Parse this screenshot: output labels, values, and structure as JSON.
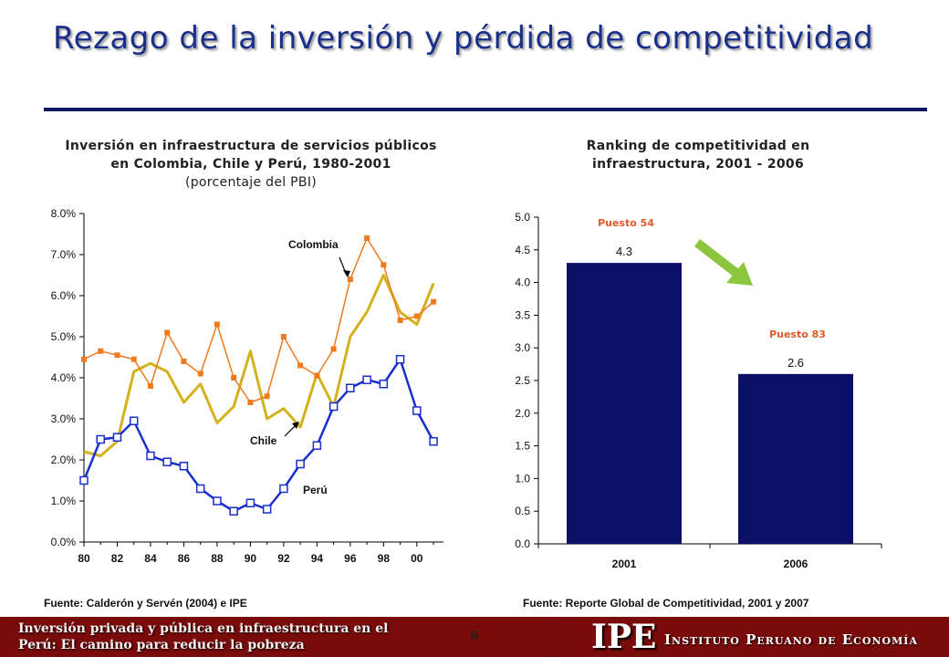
{
  "slide": {
    "title": "Rezago de la inversión y pérdida de competitividad",
    "page_number": "6",
    "footer_text": "Inversión privada y pública en infraestructura en el Perú: El camino para reducir la pobreza",
    "logo_text": "IPE",
    "institute_name": "Instituto Peruano de Economía"
  },
  "left_chart_title": {
    "line1": "Inversión en infraestructura de servicios públicos",
    "line2": "en Colombia, Chile y Perú, 1980-2001",
    "line3": "(porcentaje del PBI)"
  },
  "right_chart_title": {
    "line1": "Ranking de competitividad en",
    "line2": "infraestructura, 2001 - 2006"
  },
  "sources": {
    "left": "Fuente: Calderón y Servén (2004) e IPE",
    "right": "Fuente: Reporte Global de Competitividad, 2001 y 2007"
  },
  "colors": {
    "title": "#1a2f8a",
    "colombia": "#f07a1e",
    "chile": "#d4b21e",
    "peru": "#1a2fcc",
    "bars": "#0b0f66",
    "puesto": "#e05a2a",
    "arrow": "#8cc63f"
  },
  "chart_data": [
    {
      "type": "line",
      "x": [
        1980,
        1981,
        1982,
        1983,
        1984,
        1985,
        1986,
        1987,
        1988,
        1989,
        1990,
        1991,
        1992,
        1993,
        1994,
        1995,
        1996,
        1997,
        1998,
        1999,
        2000,
        2001
      ],
      "xticks": [
        "80",
        "82",
        "84",
        "86",
        "88",
        "90",
        "92",
        "94",
        "96",
        "98",
        "00"
      ],
      "yticks": [
        "0.0%",
        "1.0%",
        "2.0%",
        "3.0%",
        "4.0%",
        "5.0%",
        "6.0%",
        "7.0%",
        "8.0%"
      ],
      "ylim": [
        0,
        8
      ],
      "series": [
        {
          "name": "Colombia",
          "values": [
            4.45,
            4.65,
            4.55,
            4.45,
            3.8,
            5.1,
            4.4,
            4.1,
            5.3,
            4.0,
            3.4,
            3.55,
            5.0,
            4.3,
            4.05,
            4.7,
            6.4,
            7.4,
            6.75,
            5.4,
            5.5,
            5.85
          ]
        },
        {
          "name": "Chile",
          "values": [
            2.2,
            2.1,
            2.45,
            4.15,
            4.35,
            4.15,
            3.4,
            3.85,
            2.9,
            3.3,
            4.65,
            3.0,
            3.25,
            2.8,
            4.1,
            3.3,
            5.0,
            5.6,
            6.5,
            5.6,
            5.3,
            6.3
          ]
        },
        {
          "name": "Perú",
          "values": [
            1.5,
            2.5,
            2.55,
            2.95,
            2.1,
            1.95,
            1.85,
            1.3,
            1.0,
            0.75,
            0.95,
            0.8,
            1.3,
            1.9,
            2.35,
            3.3,
            3.75,
            3.95,
            3.85,
            4.45,
            3.2,
            2.45
          ]
        }
      ],
      "annotations": [
        "Colombia",
        "Chile",
        "Perú"
      ]
    },
    {
      "type": "bar",
      "categories": [
        "2001",
        "2006"
      ],
      "values": [
        4.3,
        2.6
      ],
      "data_labels": [
        "4.3",
        "2.6"
      ],
      "rank_labels": [
        "Puesto 54",
        "Puesto 83"
      ],
      "yticks": [
        "0.0",
        "0.5",
        "1.0",
        "1.5",
        "2.0",
        "2.5",
        "3.0",
        "3.5",
        "4.0",
        "4.5",
        "5.0"
      ],
      "ylim": [
        0,
        5
      ]
    }
  ]
}
